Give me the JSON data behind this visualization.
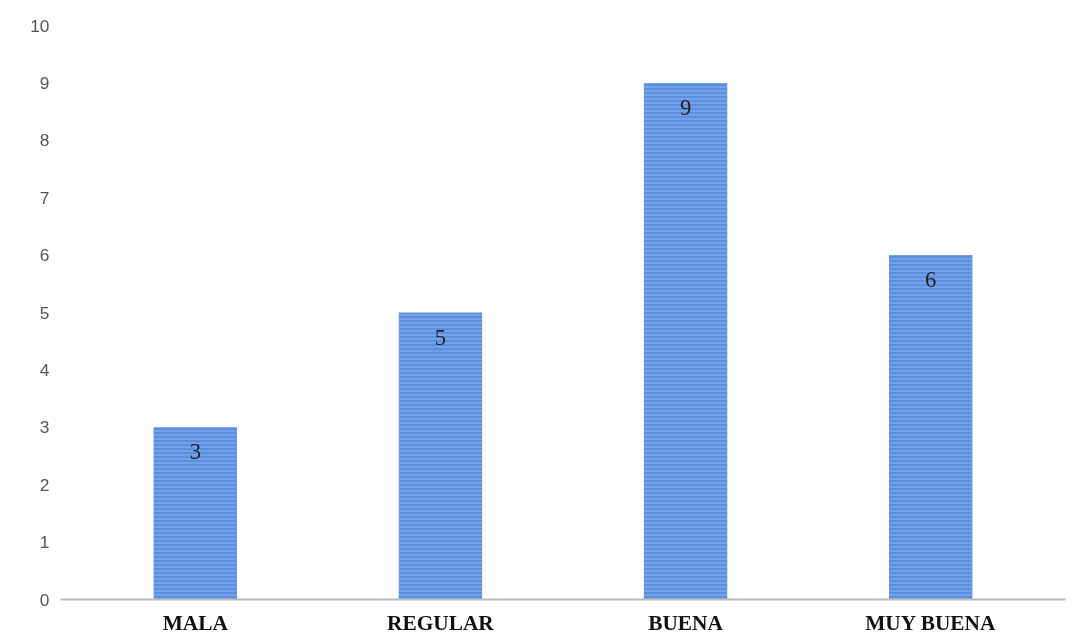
{
  "chart_data": {
    "type": "bar",
    "categories": [
      "MALA",
      "REGULAR",
      "BUENA",
      "MUY BUENA"
    ],
    "values": [
      3,
      5,
      9,
      6
    ],
    "color": "#5a8ee0",
    "ylim": [
      0,
      10
    ],
    "yticks": [
      0,
      1,
      2,
      3,
      4,
      5,
      6,
      7,
      8,
      9,
      10
    ],
    "grid": false,
    "data_labels": true
  }
}
